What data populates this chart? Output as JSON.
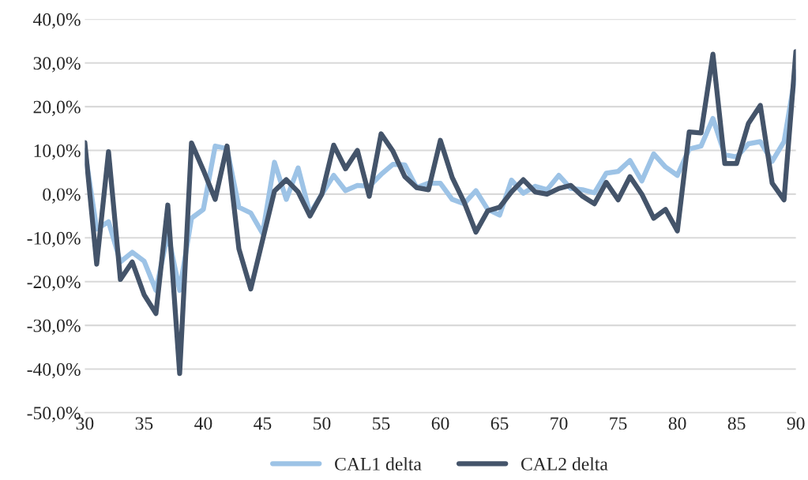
{
  "chart_data": {
    "type": "line",
    "x": [
      30,
      31,
      32,
      33,
      34,
      35,
      36,
      37,
      38,
      39,
      40,
      41,
      42,
      43,
      44,
      45,
      46,
      47,
      48,
      49,
      50,
      51,
      52,
      53,
      54,
      55,
      56,
      57,
      58,
      59,
      60,
      61,
      62,
      63,
      64,
      65,
      66,
      67,
      68,
      69,
      70,
      71,
      72,
      73,
      74,
      75,
      76,
      77,
      78,
      79,
      80,
      81,
      82,
      83,
      84,
      85,
      86,
      87,
      88,
      89,
      90
    ],
    "series": [
      {
        "name": "CAL1 delta",
        "color": "#9dc3e6",
        "values": [
          10,
          -8,
          -6.3,
          -15.5,
          -13.3,
          -15.3,
          -22,
          -9,
          -22,
          -5.5,
          -3.5,
          11,
          10.4,
          -3,
          -4.3,
          -9,
          7.3,
          -1.2,
          6,
          -4.5,
          0,
          4.3,
          0.8,
          2,
          1.8,
          4.5,
          6.8,
          6.7,
          1.5,
          2.5,
          2.5,
          -1.2,
          -2.2,
          0.8,
          -3.5,
          -4.8,
          3.2,
          0.2,
          1.8,
          1,
          4.3,
          1.3,
          1,
          0.3,
          4.8,
          5.2,
          7.7,
          3,
          9.2,
          6.2,
          4.3,
          10.3,
          11,
          17.3,
          9,
          8.5,
          11.5,
          12,
          7.5,
          12,
          28
        ]
      },
      {
        "name": "CAL2 delta",
        "color": "#44546a",
        "values": [
          11.8,
          -16,
          9.7,
          -19.5,
          -15.5,
          -23,
          -27.3,
          -2.5,
          -41,
          11.7,
          5.5,
          -1.2,
          11,
          -12.5,
          -21.7,
          -10.5,
          0.7,
          3.3,
          0.5,
          -5,
          0,
          11.2,
          5.8,
          10,
          -0.5,
          13.8,
          9.8,
          4,
          1.5,
          1,
          12.3,
          3.8,
          -1.8,
          -8.7,
          -3.8,
          -3,
          0.5,
          3.3,
          0.5,
          0,
          1.3,
          2,
          -0.5,
          -2.2,
          2.7,
          -1.3,
          4,
          0,
          -5.5,
          -3.5,
          -8.4,
          14.2,
          14,
          32,
          7,
          7,
          16.2,
          20.3,
          2.5,
          -1.3,
          32.6
        ]
      }
    ],
    "xlim": [
      30,
      90
    ],
    "xticks": [
      30,
      35,
      40,
      45,
      50,
      55,
      60,
      65,
      70,
      75,
      80,
      85,
      90
    ],
    "ylim": [
      -50,
      40
    ],
    "yticks": [
      {
        "value": -50,
        "label": "-50,0%"
      },
      {
        "value": -40,
        "label": "-40,0%"
      },
      {
        "value": -30,
        "label": "-30,0%"
      },
      {
        "value": -20,
        "label": "-20,0%"
      },
      {
        "value": -10,
        "label": "-10,0%"
      },
      {
        "value": 0,
        "label": "0,0%"
      },
      {
        "value": 10,
        "label": "10,0%"
      },
      {
        "value": 20,
        "label": "20,0%"
      },
      {
        "value": 30,
        "label": "30,0%"
      },
      {
        "value": 40,
        "label": "40,0%"
      }
    ],
    "grid": "y",
    "legend": "bottom",
    "marker": "none",
    "line_style": "solid"
  }
}
